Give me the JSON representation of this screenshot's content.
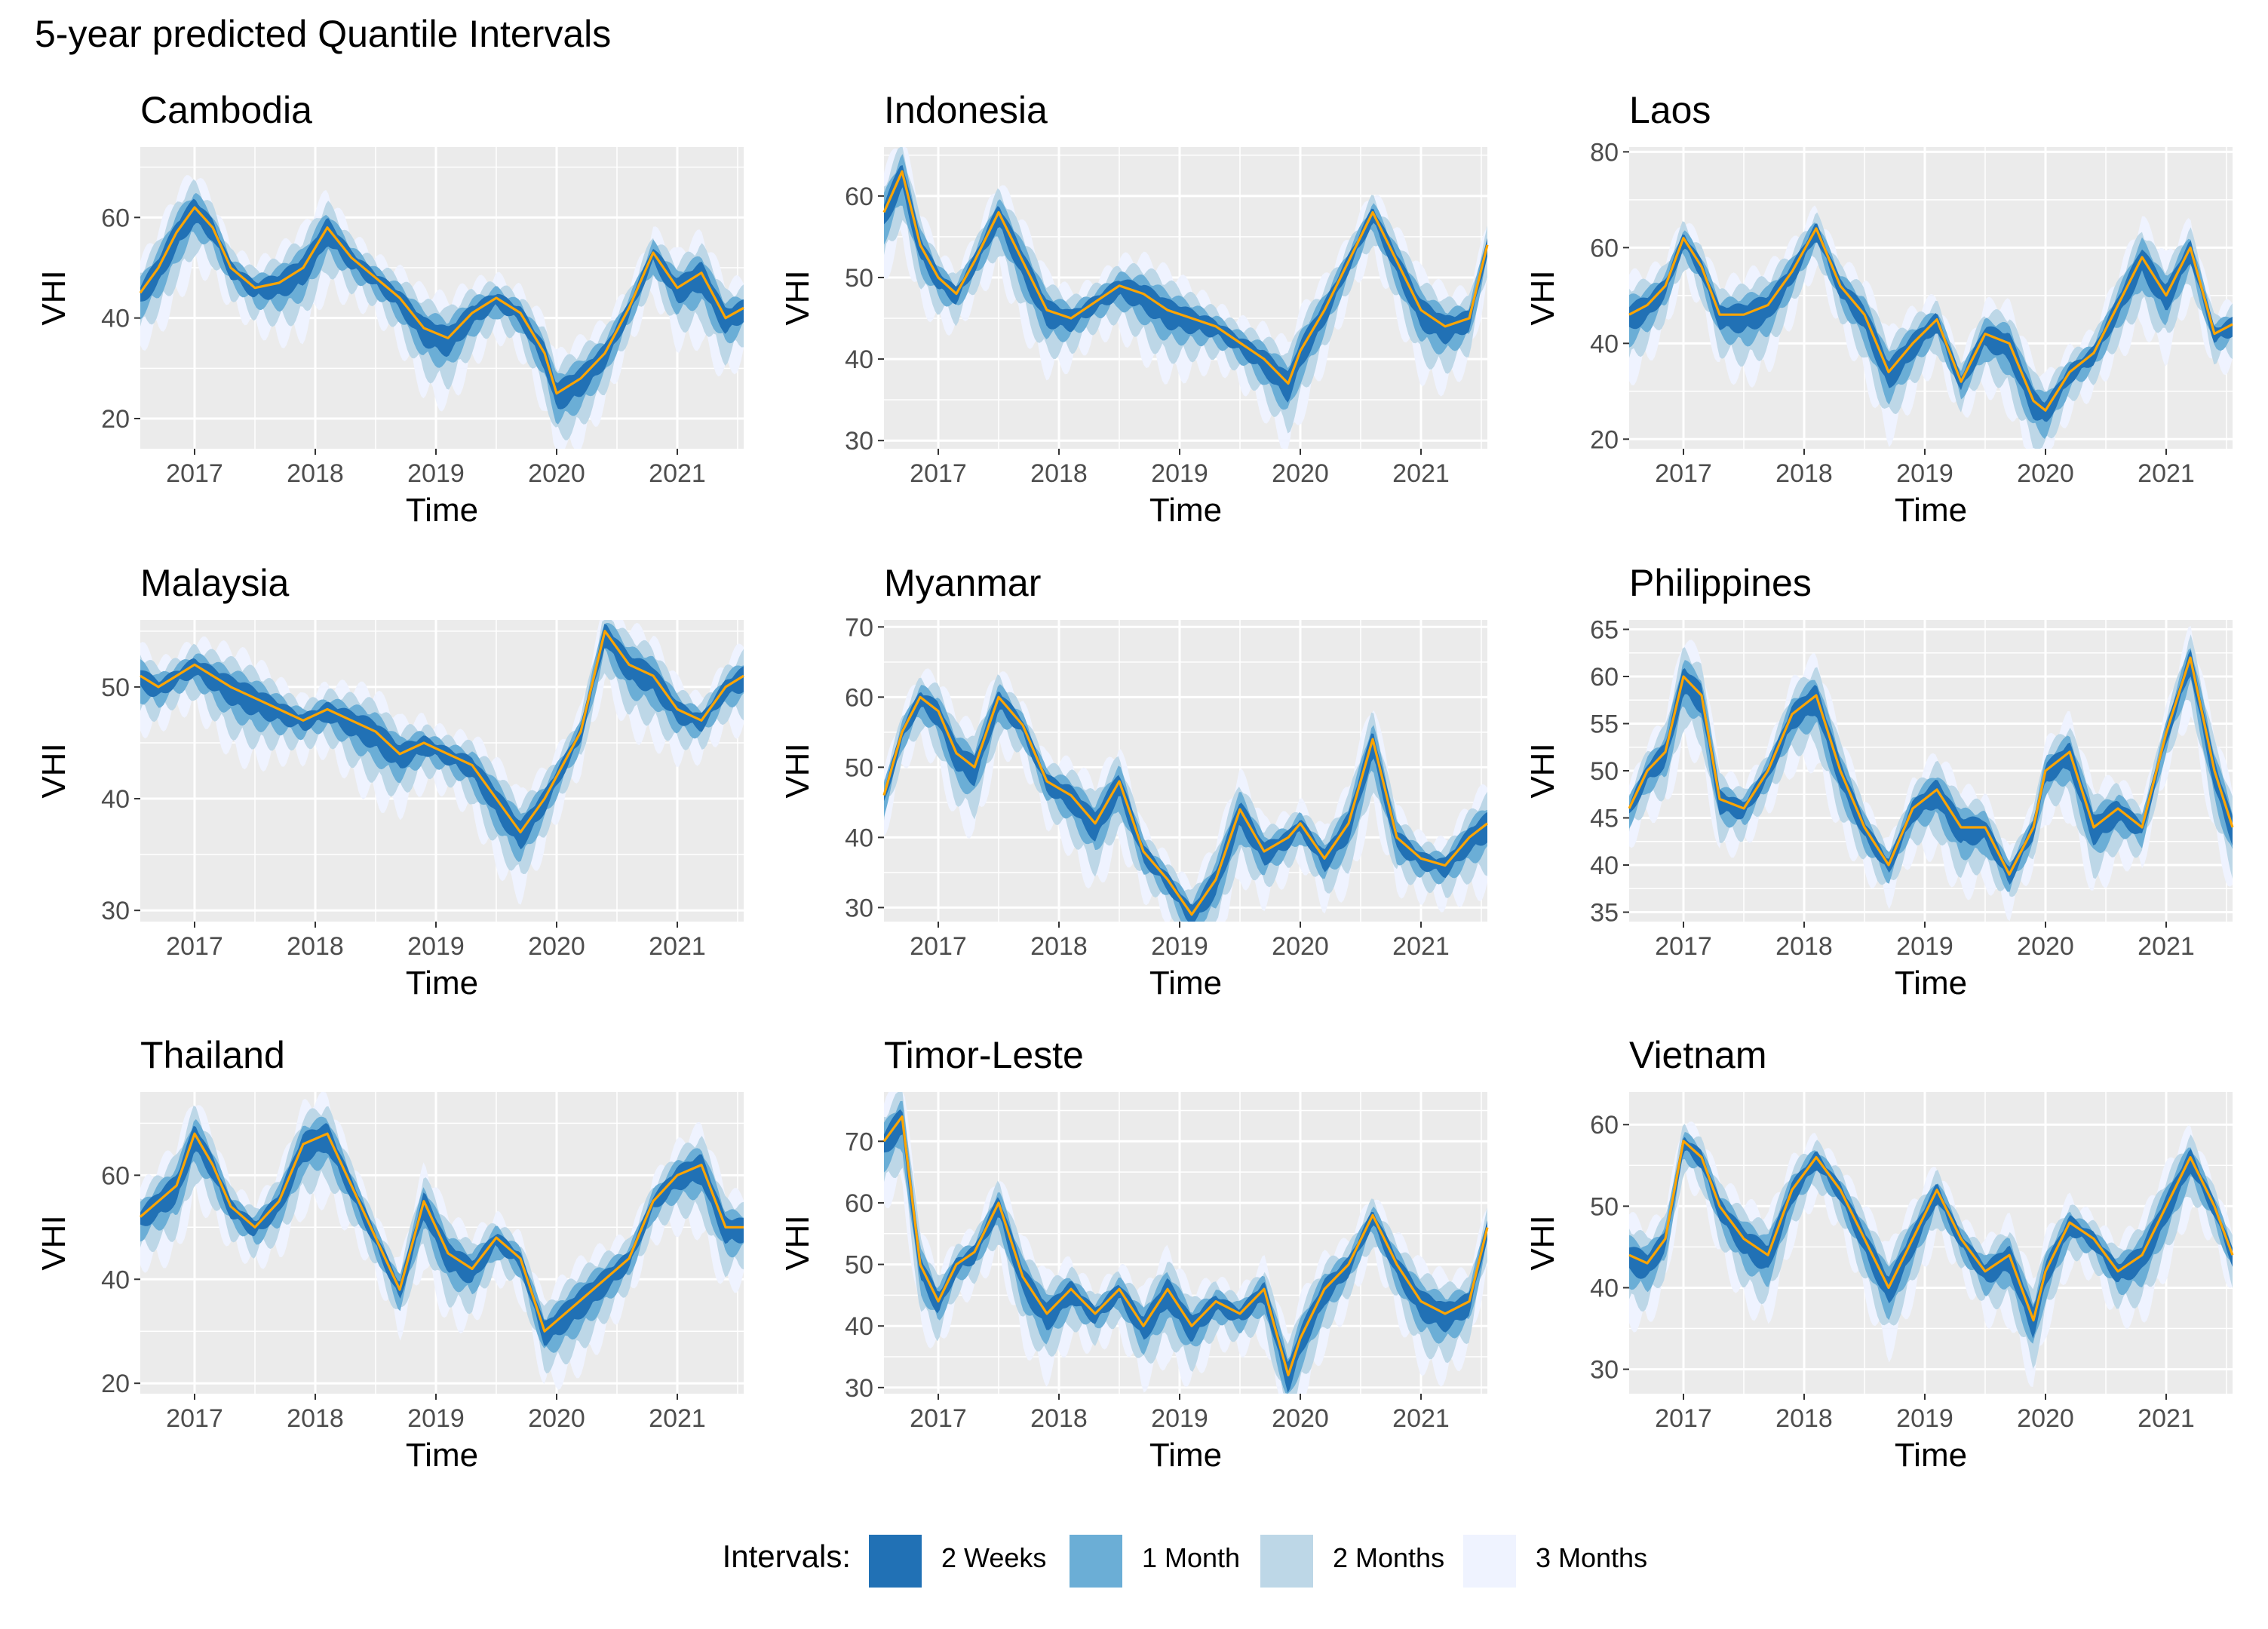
{
  "title": "5-year predicted Quantile Intervals",
  "legend": {
    "title": "Intervals:",
    "items": [
      {
        "label": "2 Weeks",
        "color": "#2171b5"
      },
      {
        "label": "1 Month",
        "color": "#6baed6"
      },
      {
        "label": "2 Months",
        "color": "#bdd7e7"
      },
      {
        "label": "3 Months",
        "color": "#eff3ff"
      }
    ]
  },
  "colors": {
    "panel_bg": "#ebebeb",
    "grid": "#ffffff",
    "median_line": "#ffa500"
  },
  "chart_data": [
    {
      "type": "area",
      "title": "Cambodia",
      "xlabel": "Time",
      "ylabel": "VHI",
      "xlim": [
        2016.55,
        2021.55
      ],
      "ylim": [
        14,
        74
      ],
      "y_ticks": [
        20,
        40,
        60
      ],
      "x_ticks": [
        2017,
        2018,
        2019,
        2020,
        2021
      ],
      "series": [
        {
          "name": "median",
          "x": [
            2016.55,
            2016.7,
            2016.85,
            2017.0,
            2017.15,
            2017.3,
            2017.5,
            2017.7,
            2017.9,
            2018.1,
            2018.3,
            2018.5,
            2018.7,
            2018.9,
            2019.1,
            2019.3,
            2019.5,
            2019.7,
            2019.9,
            2020.0,
            2020.2,
            2020.4,
            2020.6,
            2020.8,
            2021.0,
            2021.2,
            2021.4,
            2021.55
          ],
          "values": [
            45,
            50,
            57,
            62,
            58,
            50,
            46,
            47,
            50,
            58,
            52,
            48,
            44,
            38,
            36,
            41,
            44,
            41,
            33,
            25,
            28,
            33,
            42,
            53,
            46,
            49,
            40,
            42
          ]
        }
      ]
    },
    {
      "type": "area",
      "title": "Indonesia",
      "xlabel": "Time",
      "ylabel": "VHI",
      "xlim": [
        2016.55,
        2021.55
      ],
      "ylim": [
        29,
        66
      ],
      "y_ticks": [
        30,
        40,
        50,
        60
      ],
      "x_ticks": [
        2017,
        2018,
        2019,
        2020,
        2021
      ],
      "series": [
        {
          "name": "median",
          "x": [
            2016.55,
            2016.7,
            2016.85,
            2017.0,
            2017.15,
            2017.3,
            2017.5,
            2017.7,
            2017.9,
            2018.1,
            2018.3,
            2018.5,
            2018.7,
            2018.9,
            2019.1,
            2019.3,
            2019.5,
            2019.7,
            2019.9,
            2020.0,
            2020.2,
            2020.4,
            2020.6,
            2020.8,
            2021.0,
            2021.2,
            2021.4,
            2021.55
          ],
          "values": [
            58,
            63,
            54,
            50,
            48,
            52,
            58,
            52,
            46,
            45,
            47,
            49,
            48,
            46,
            45,
            44,
            42,
            40,
            37,
            41,
            46,
            52,
            58,
            52,
            46,
            44,
            45,
            54
          ]
        }
      ]
    },
    {
      "type": "area",
      "title": "Laos",
      "xlabel": "Time",
      "ylabel": "VHI",
      "xlim": [
        2016.55,
        2021.55
      ],
      "ylim": [
        18,
        81
      ],
      "y_ticks": [
        20,
        40,
        60,
        80
      ],
      "x_ticks": [
        2017,
        2018,
        2019,
        2020,
        2021
      ],
      "series": [
        {
          "name": "median",
          "x": [
            2016.55,
            2016.7,
            2016.85,
            2017.0,
            2017.15,
            2017.3,
            2017.5,
            2017.7,
            2017.9,
            2018.1,
            2018.3,
            2018.5,
            2018.7,
            2018.9,
            2019.1,
            2019.3,
            2019.5,
            2019.7,
            2019.9,
            2020.0,
            2020.2,
            2020.4,
            2020.6,
            2020.8,
            2021.0,
            2021.2,
            2021.4,
            2021.55
          ],
          "values": [
            46,
            48,
            52,
            62,
            56,
            46,
            46,
            48,
            55,
            64,
            52,
            46,
            34,
            40,
            45,
            32,
            42,
            40,
            28,
            26,
            34,
            38,
            48,
            58,
            50,
            60,
            42,
            44
          ]
        }
      ]
    },
    {
      "type": "area",
      "title": "Malaysia",
      "xlabel": "Time",
      "ylabel": "VHI",
      "xlim": [
        2016.55,
        2021.55
      ],
      "ylim": [
        29,
        56
      ],
      "y_ticks": [
        30,
        40,
        50
      ],
      "x_ticks": [
        2017,
        2018,
        2019,
        2020,
        2021
      ],
      "series": [
        {
          "name": "median",
          "x": [
            2016.55,
            2016.7,
            2016.85,
            2017.0,
            2017.15,
            2017.3,
            2017.5,
            2017.7,
            2017.9,
            2018.1,
            2018.3,
            2018.5,
            2018.7,
            2018.9,
            2019.1,
            2019.3,
            2019.5,
            2019.7,
            2019.9,
            2020.0,
            2020.2,
            2020.4,
            2020.6,
            2020.8,
            2021.0,
            2021.2,
            2021.4,
            2021.55
          ],
          "values": [
            51,
            50,
            51,
            52,
            51,
            50,
            49,
            48,
            47,
            48,
            47,
            46,
            44,
            45,
            44,
            43,
            40,
            37,
            40,
            42,
            46,
            55,
            52,
            51,
            48,
            47,
            50,
            51
          ]
        }
      ]
    },
    {
      "type": "area",
      "title": "Myanmar",
      "xlabel": "Time",
      "ylabel": "VHI",
      "xlim": [
        2016.55,
        2021.55
      ],
      "ylim": [
        28,
        71
      ],
      "y_ticks": [
        30,
        40,
        50,
        60,
        70
      ],
      "x_ticks": [
        2017,
        2018,
        2019,
        2020,
        2021
      ],
      "series": [
        {
          "name": "median",
          "x": [
            2016.55,
            2016.7,
            2016.85,
            2017.0,
            2017.15,
            2017.3,
            2017.5,
            2017.7,
            2017.9,
            2018.1,
            2018.3,
            2018.5,
            2018.7,
            2018.9,
            2019.1,
            2019.3,
            2019.5,
            2019.7,
            2019.9,
            2020.0,
            2020.2,
            2020.4,
            2020.6,
            2020.8,
            2021.0,
            2021.2,
            2021.4,
            2021.55
          ],
          "values": [
            46,
            55,
            60,
            58,
            52,
            50,
            60,
            56,
            48,
            46,
            42,
            48,
            38,
            34,
            29,
            34,
            44,
            38,
            40,
            42,
            37,
            42,
            54,
            40,
            37,
            36,
            40,
            42
          ]
        }
      ]
    },
    {
      "type": "area",
      "title": "Philippines",
      "xlabel": "Time",
      "ylabel": "VHI",
      "xlim": [
        2016.55,
        2021.55
      ],
      "ylim": [
        34,
        66
      ],
      "y_ticks": [
        35,
        40,
        45,
        50,
        55,
        60,
        65
      ],
      "x_ticks": [
        2017,
        2018,
        2019,
        2020,
        2021
      ],
      "series": [
        {
          "name": "median",
          "x": [
            2016.55,
            2016.7,
            2016.85,
            2017.0,
            2017.15,
            2017.3,
            2017.5,
            2017.7,
            2017.9,
            2018.1,
            2018.3,
            2018.5,
            2018.7,
            2018.9,
            2019.1,
            2019.3,
            2019.5,
            2019.7,
            2019.9,
            2020.0,
            2020.2,
            2020.4,
            2020.6,
            2020.8,
            2021.0,
            2021.2,
            2021.4,
            2021.55
          ],
          "values": [
            46,
            50,
            52,
            60,
            58,
            47,
            46,
            50,
            56,
            58,
            50,
            44,
            40,
            46,
            48,
            44,
            44,
            39,
            44,
            50,
            52,
            44,
            46,
            44,
            54,
            62,
            50,
            44
          ]
        }
      ]
    },
    {
      "type": "area",
      "title": "Thailand",
      "xlabel": "Time",
      "ylabel": "VHI",
      "xlim": [
        2016.55,
        2021.55
      ],
      "ylim": [
        18,
        76
      ],
      "y_ticks": [
        20,
        40,
        60
      ],
      "x_ticks": [
        2017,
        2018,
        2019,
        2020,
        2021
      ],
      "series": [
        {
          "name": "median",
          "x": [
            2016.55,
            2016.7,
            2016.85,
            2017.0,
            2017.15,
            2017.3,
            2017.5,
            2017.7,
            2017.9,
            2018.1,
            2018.3,
            2018.5,
            2018.7,
            2018.9,
            2019.1,
            2019.3,
            2019.5,
            2019.7,
            2019.9,
            2020.0,
            2020.2,
            2020.4,
            2020.6,
            2020.8,
            2021.0,
            2021.2,
            2021.4,
            2021.55
          ],
          "values": [
            52,
            55,
            58,
            68,
            62,
            54,
            50,
            55,
            66,
            68,
            58,
            48,
            38,
            55,
            45,
            42,
            48,
            44,
            30,
            32,
            36,
            40,
            44,
            55,
            60,
            62,
            50,
            50
          ]
        }
      ]
    },
    {
      "type": "area",
      "title": "Timor-Leste",
      "xlabel": "Time",
      "ylabel": "VHI",
      "xlim": [
        2016.55,
        2021.55
      ],
      "ylim": [
        29,
        78
      ],
      "y_ticks": [
        30,
        40,
        50,
        60,
        70
      ],
      "x_ticks": [
        2017,
        2018,
        2019,
        2020,
        2021
      ],
      "series": [
        {
          "name": "median",
          "x": [
            2016.55,
            2016.7,
            2016.85,
            2017.0,
            2017.15,
            2017.3,
            2017.5,
            2017.7,
            2017.9,
            2018.1,
            2018.3,
            2018.5,
            2018.7,
            2018.9,
            2019.1,
            2019.3,
            2019.5,
            2019.7,
            2019.9,
            2020.0,
            2020.2,
            2020.4,
            2020.6,
            2020.8,
            2021.0,
            2021.2,
            2021.4,
            2021.55
          ],
          "values": [
            70,
            74,
            50,
            44,
            50,
            52,
            60,
            48,
            42,
            46,
            42,
            46,
            40,
            46,
            40,
            44,
            42,
            46,
            32,
            38,
            46,
            50,
            58,
            50,
            44,
            42,
            44,
            56
          ]
        }
      ]
    },
    {
      "type": "area",
      "title": "Vietnam",
      "xlabel": "Time",
      "ylabel": "VHI",
      "xlim": [
        2016.55,
        2021.55
      ],
      "ylim": [
        27,
        64
      ],
      "y_ticks": [
        30,
        40,
        50,
        60
      ],
      "x_ticks": [
        2017,
        2018,
        2019,
        2020,
        2021
      ],
      "series": [
        {
          "name": "median",
          "x": [
            2016.55,
            2016.7,
            2016.85,
            2017.0,
            2017.15,
            2017.3,
            2017.5,
            2017.7,
            2017.9,
            2018.1,
            2018.3,
            2018.5,
            2018.7,
            2018.9,
            2019.1,
            2019.3,
            2019.5,
            2019.7,
            2019.9,
            2020.0,
            2020.2,
            2020.4,
            2020.6,
            2020.8,
            2021.0,
            2021.2,
            2021.4,
            2021.55
          ],
          "values": [
            44,
            43,
            46,
            58,
            56,
            50,
            46,
            44,
            52,
            56,
            52,
            46,
            40,
            46,
            52,
            46,
            42,
            44,
            36,
            42,
            48,
            46,
            42,
            44,
            50,
            56,
            50,
            44
          ]
        }
      ]
    }
  ]
}
